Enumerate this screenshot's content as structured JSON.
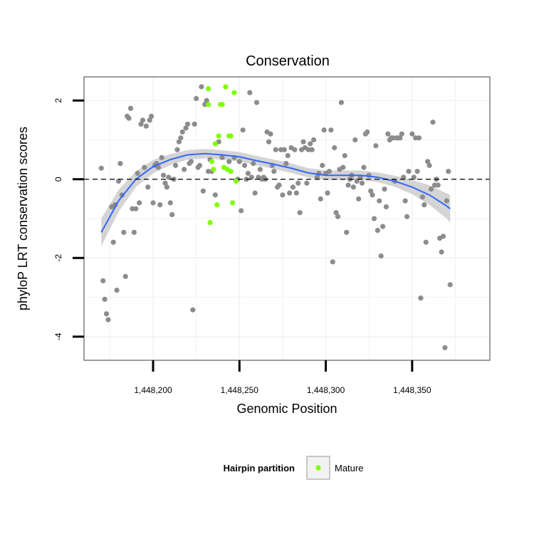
{
  "chart_data": {
    "type": "scatter",
    "title": "Conservation",
    "xlabel": "Genomic Position",
    "ylabel": "phyloP LRT conservation scores",
    "xlim": [
      1448160,
      1448395
    ],
    "ylim": [
      -4.6,
      2.6
    ],
    "x_ticks": [
      1448200,
      1448250,
      1448300,
      1448350
    ],
    "x_tick_labels": [
      "1,448,200",
      "1,448,250",
      "1,448,300",
      "1,448,350"
    ],
    "y_ticks": [
      -4,
      -2,
      0,
      2
    ],
    "y_tick_labels": [
      "-4",
      "-2",
      "0",
      "2"
    ],
    "grid": true,
    "reference_line": {
      "y": 0,
      "style": "dashed"
    },
    "legend": {
      "title": "Hairpin partition",
      "position": "bottom",
      "entries": [
        {
          "label": "Mature",
          "color": "#7fff00"
        }
      ]
    },
    "colors": {
      "other": "#8c8c8c",
      "mature": "#7fff00",
      "smooth": "#3366ff",
      "ribbon": "#cccccc"
    },
    "series": [
      {
        "group": "other",
        "points": [
          [
            1448170,
            0.28
          ],
          [
            1448171,
            -2.58
          ],
          [
            1448172,
            -3.05
          ],
          [
            1448173,
            -3.42
          ],
          [
            1448174,
            -3.57
          ],
          [
            1448176,
            -0.7
          ],
          [
            1448177,
            -1.6
          ],
          [
            1448178,
            -0.65
          ],
          [
            1448179,
            -2.82
          ],
          [
            1448180,
            -0.05
          ],
          [
            1448181,
            0.4
          ],
          [
            1448182,
            -0.4
          ],
          [
            1448183,
            -1.35
          ],
          [
            1448184,
            -2.47
          ],
          [
            1448185,
            1.6
          ],
          [
            1448186,
            1.55
          ],
          [
            1448187,
            1.8
          ],
          [
            1448188,
            -0.75
          ],
          [
            1448189,
            -1.35
          ],
          [
            1448190,
            -0.75
          ],
          [
            1448191,
            0.15
          ],
          [
            1448192,
            -0.6
          ],
          [
            1448193,
            1.4
          ],
          [
            1448194,
            1.5
          ],
          [
            1448195,
            0.3
          ],
          [
            1448196,
            1.35
          ],
          [
            1448197,
            -0.2
          ],
          [
            1448198,
            1.5
          ],
          [
            1448199,
            1.6
          ],
          [
            1448200,
            -0.6
          ],
          [
            1448201,
            0.35
          ],
          [
            1448202,
            0.4
          ],
          [
            1448203,
            0.3
          ],
          [
            1448204,
            -0.65
          ],
          [
            1448205,
            0.55
          ],
          [
            1448206,
            0.1
          ],
          [
            1448207,
            -0.1
          ],
          [
            1448208,
            -0.2
          ],
          [
            1448209,
            0.05
          ],
          [
            1448210,
            -0.6
          ],
          [
            1448211,
            -0.9
          ],
          [
            1448212,
            0.0
          ],
          [
            1448213,
            0.35
          ],
          [
            1448214,
            0.75
          ],
          [
            1448215,
            0.95
          ],
          [
            1448216,
            1.05
          ],
          [
            1448217,
            1.2
          ],
          [
            1448218,
            0.25
          ],
          [
            1448219,
            1.3
          ],
          [
            1448220,
            1.4
          ],
          [
            1448221,
            0.4
          ],
          [
            1448222,
            0.45
          ],
          [
            1448223,
            -3.32
          ],
          [
            1448224,
            1.4
          ],
          [
            1448225,
            2.05
          ],
          [
            1448226,
            0.3
          ],
          [
            1448227,
            0.35
          ],
          [
            1448228,
            2.35
          ],
          [
            1448229,
            -0.3
          ],
          [
            1448230,
            1.9
          ],
          [
            1448231,
            2.0
          ],
          [
            1448232,
            0.2
          ],
          [
            1448233,
            0.5
          ],
          [
            1448234,
            0.2
          ],
          [
            1448236,
            -0.4
          ],
          [
            1448238,
            0.95
          ],
          [
            1448240,
            0.55
          ],
          [
            1448244,
            0.45
          ],
          [
            1448247,
            0.55
          ],
          [
            1448249,
            0.0
          ],
          [
            1448250,
            0.45
          ],
          [
            1448251,
            -0.8
          ],
          [
            1448252,
            1.25
          ],
          [
            1448253,
            0.35
          ],
          [
            1448254,
            0.0
          ],
          [
            1448255,
            0.15
          ],
          [
            1448256,
            2.2
          ],
          [
            1448257,
            0.05
          ],
          [
            1448258,
            0.4
          ],
          [
            1448259,
            -0.35
          ],
          [
            1448260,
            1.95
          ],
          [
            1448261,
            0.05
          ],
          [
            1448262,
            0.25
          ],
          [
            1448263,
            0.0
          ],
          [
            1448264,
            0.05
          ],
          [
            1448265,
            0.0
          ],
          [
            1448266,
            1.2
          ],
          [
            1448267,
            0.95
          ],
          [
            1448268,
            1.15
          ],
          [
            1448269,
            0.35
          ],
          [
            1448270,
            0.2
          ],
          [
            1448271,
            0.75
          ],
          [
            1448272,
            -0.2
          ],
          [
            1448273,
            -0.15
          ],
          [
            1448274,
            0.75
          ],
          [
            1448275,
            -0.4
          ],
          [
            1448276,
            0.75
          ],
          [
            1448277,
            0.4
          ],
          [
            1448278,
            0.6
          ],
          [
            1448279,
            -0.35
          ],
          [
            1448280,
            0.8
          ],
          [
            1448281,
            -0.2
          ],
          [
            1448282,
            0.75
          ],
          [
            1448283,
            -0.35
          ],
          [
            1448284,
            -0.1
          ],
          [
            1448285,
            -0.85
          ],
          [
            1448286,
            0.75
          ],
          [
            1448287,
            0.95
          ],
          [
            1448288,
            0.8
          ],
          [
            1448289,
            -0.1
          ],
          [
            1448290,
            0.75
          ],
          [
            1448291,
            0.9
          ],
          [
            1448292,
            0.75
          ],
          [
            1448293,
            1.0
          ],
          [
            1448295,
            0.05
          ],
          [
            1448296,
            0.15
          ],
          [
            1448297,
            -0.5
          ],
          [
            1448298,
            0.35
          ],
          [
            1448299,
            1.25
          ],
          [
            1448300,
            0.15
          ],
          [
            1448301,
            -0.35
          ],
          [
            1448302,
            0.2
          ],
          [
            1448303,
            1.25
          ],
          [
            1448304,
            -2.1
          ],
          [
            1448305,
            0.8
          ],
          [
            1448306,
            -0.85
          ],
          [
            1448307,
            -0.95
          ],
          [
            1448308,
            0.25
          ],
          [
            1448309,
            1.95
          ],
          [
            1448310,
            0.3
          ],
          [
            1448311,
            0.6
          ],
          [
            1448312,
            -1.35
          ],
          [
            1448313,
            -0.15
          ],
          [
            1448314,
            0.0
          ],
          [
            1448315,
            0.1
          ],
          [
            1448316,
            -0.2
          ],
          [
            1448317,
            1.0
          ],
          [
            1448318,
            -0.05
          ],
          [
            1448319,
            -0.5
          ],
          [
            1448320,
            0.05
          ],
          [
            1448321,
            -0.1
          ],
          [
            1448322,
            0.3
          ],
          [
            1448323,
            1.15
          ],
          [
            1448324,
            1.2
          ],
          [
            1448325,
            0.1
          ],
          [
            1448326,
            -0.3
          ],
          [
            1448327,
            -0.4
          ],
          [
            1448328,
            -1.0
          ],
          [
            1448329,
            0.85
          ],
          [
            1448330,
            -1.3
          ],
          [
            1448331,
            -0.55
          ],
          [
            1448332,
            -1.95
          ],
          [
            1448333,
            -1.2
          ],
          [
            1448334,
            -0.25
          ],
          [
            1448335,
            -0.7
          ],
          [
            1448336,
            1.15
          ],
          [
            1448337,
            1.0
          ],
          [
            1448338,
            1.05
          ],
          [
            1448339,
            1.05
          ],
          [
            1448340,
            -0.05
          ],
          [
            1448341,
            1.05
          ],
          [
            1448342,
            1.05
          ],
          [
            1448343,
            1.05
          ],
          [
            1448344,
            1.15
          ],
          [
            1448345,
            0.05
          ],
          [
            1448346,
            -0.55
          ],
          [
            1448347,
            -0.95
          ],
          [
            1448348,
            0.2
          ],
          [
            1448350,
            1.15
          ],
          [
            1448351,
            0.05
          ],
          [
            1448352,
            1.05
          ],
          [
            1448353,
            0.2
          ],
          [
            1448354,
            1.05
          ],
          [
            1448355,
            -3.02
          ],
          [
            1448356,
            -0.45
          ],
          [
            1448357,
            -0.65
          ],
          [
            1448358,
            -1.6
          ],
          [
            1448359,
            0.45
          ],
          [
            1448360,
            0.35
          ],
          [
            1448361,
            -0.25
          ],
          [
            1448362,
            1.45
          ],
          [
            1448363,
            -0.15
          ],
          [
            1448364,
            0.0
          ],
          [
            1448365,
            -0.15
          ],
          [
            1448366,
            -1.5
          ],
          [
            1448367,
            -1.85
          ],
          [
            1448368,
            -1.45
          ],
          [
            1448369,
            -4.28
          ],
          [
            1448370,
            -0.55
          ],
          [
            1448371,
            0.2
          ],
          [
            1448372,
            -2.68
          ]
        ]
      },
      {
        "group": "mature",
        "points": [
          [
            1448232,
            2.3
          ],
          [
            1448232,
            1.9
          ],
          [
            1448233,
            -1.1
          ],
          [
            1448234,
            0.45
          ],
          [
            1448235,
            0.25
          ],
          [
            1448236,
            0.9
          ],
          [
            1448237,
            -0.65
          ],
          [
            1448238,
            1.1
          ],
          [
            1448239,
            1.9
          ],
          [
            1448240,
            1.9
          ],
          [
            1448241,
            0.3
          ],
          [
            1448242,
            2.35
          ],
          [
            1448243,
            0.25
          ],
          [
            1448244,
            1.1
          ],
          [
            1448245,
            0.2
          ],
          [
            1448245,
            1.1
          ],
          [
            1448246,
            -0.6
          ],
          [
            1448247,
            2.2
          ],
          [
            1448248,
            -0.05
          ]
        ]
      }
    ],
    "smooth": {
      "x": [
        1448170,
        1448180,
        1448190,
        1448200,
        1448210,
        1448220,
        1448230,
        1448240,
        1448250,
        1448260,
        1448270,
        1448280,
        1448290,
        1448300,
        1448310,
        1448320,
        1448330,
        1448340,
        1448350,
        1448360,
        1448370,
        1448372
      ],
      "y": [
        -1.35,
        -0.55,
        0.0,
        0.32,
        0.5,
        0.62,
        0.65,
        0.62,
        0.57,
        0.47,
        0.38,
        0.28,
        0.16,
        0.1,
        0.1,
        0.1,
        0.05,
        -0.05,
        -0.2,
        -0.4,
        -0.68,
        -0.75
      ],
      "se": [
        0.35,
        0.28,
        0.2,
        0.17,
        0.14,
        0.12,
        0.12,
        0.12,
        0.12,
        0.12,
        0.12,
        0.12,
        0.12,
        0.12,
        0.12,
        0.12,
        0.12,
        0.14,
        0.18,
        0.25,
        0.32,
        0.35
      ]
    }
  }
}
